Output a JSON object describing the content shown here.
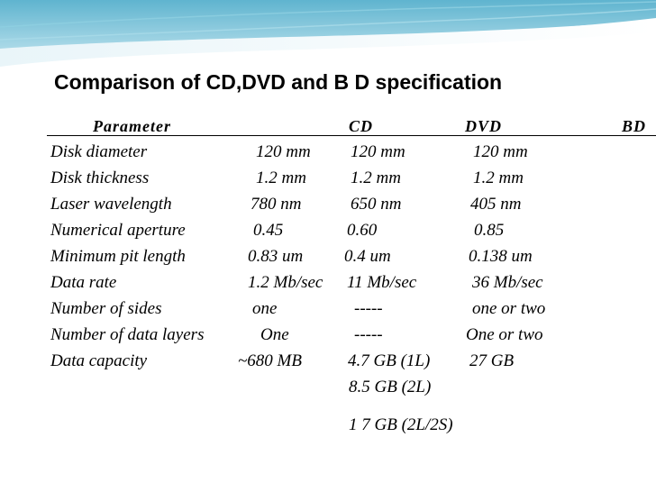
{
  "slide": {
    "title": "Comparison of CD,DVD and B D specification",
    "columns": [
      "Parameter",
      "CD",
      "DVD",
      "BD"
    ],
    "rows": [
      {
        "parameter": "Disk diameter",
        "cd": "120 mm",
        "dvd": "120 mm",
        "bd": "120 mm"
      },
      {
        "parameter": "Disk thickness",
        "cd": "1.2 mm",
        "dvd": "1.2 mm",
        "bd": "1.2 mm"
      },
      {
        "parameter": "Laser wavelength",
        "cd": "780 nm",
        "dvd": "650 nm",
        "bd": "405 nm"
      },
      {
        "parameter": "Numerical aperture",
        "cd": "0.45",
        "dvd": "0.60",
        "bd": "0.85"
      },
      {
        "parameter": "Minimum pit length",
        "cd": "0.83 um",
        "dvd": "0.4 um",
        "bd": "0.138 um"
      },
      {
        "parameter": "Data rate",
        "cd": "1.2 Mb/sec",
        "dvd": "11 Mb/sec",
        "bd": "36 Mb/sec"
      },
      {
        "parameter": "Number of sides",
        "cd": "one",
        "dvd": "-----",
        "bd": "one or two"
      },
      {
        "parameter": "Number of data layers",
        "cd": "One",
        "dvd": "-----",
        "bd": "One or two"
      },
      {
        "parameter": "Data capacity",
        "cd": "~680 MB",
        "dvd": "4.7 GB (1L)",
        "bd": "27 GB"
      }
    ],
    "extra_dvd_capacity": [
      "8.5 GB (2L)",
      "1 7 GB (2L/2S)"
    ]
  }
}
